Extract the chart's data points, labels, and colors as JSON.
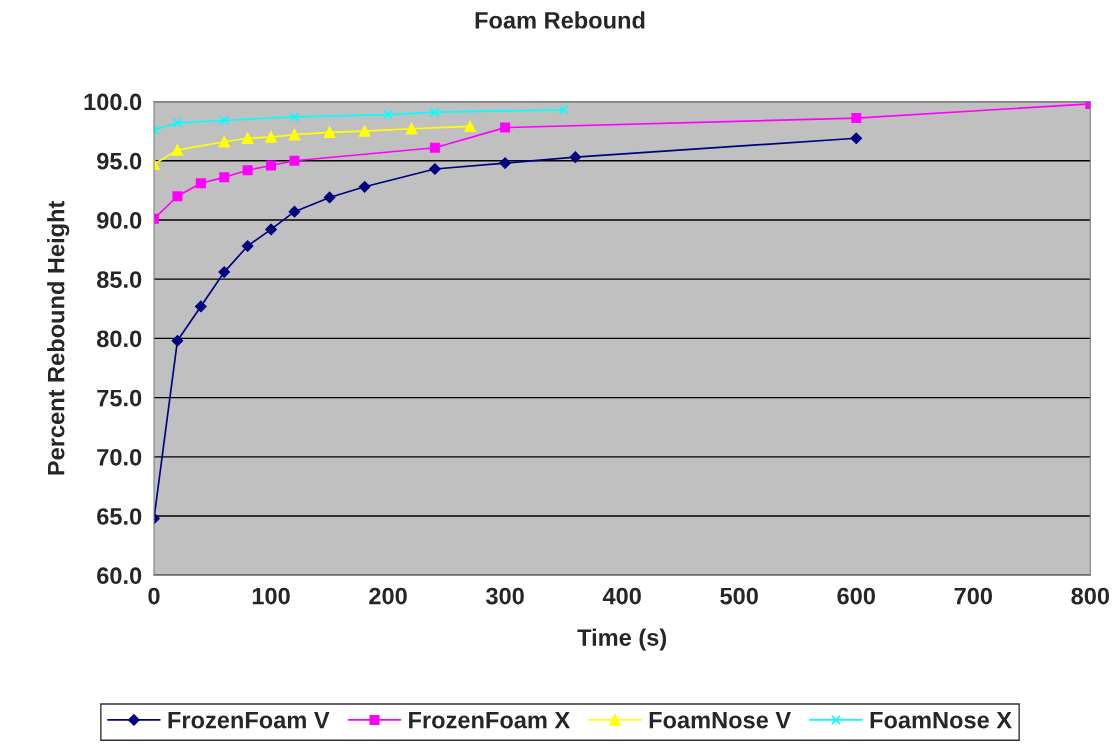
{
  "chart_data": {
    "type": "line",
    "title": "Foam Rebound",
    "xlabel": "Time (s)",
    "ylabel": "Percent Rebound Height",
    "xlim": [
      0,
      800
    ],
    "xticks": [
      0,
      100,
      200,
      300,
      400,
      500,
      600,
      700,
      800
    ],
    "ylim": [
      60,
      100
    ],
    "yticks": [
      {
        "value": 60,
        "label": "60.0"
      },
      {
        "value": 65,
        "label": "65.0"
      },
      {
        "value": 70,
        "label": "70.0"
      },
      {
        "value": 75,
        "label": "75.0"
      },
      {
        "value": 80,
        "label": "80.0"
      },
      {
        "value": 85,
        "label": "85.0"
      },
      {
        "value": 90,
        "label": "90.0"
      },
      {
        "value": 95,
        "label": "95.0"
      },
      {
        "value": 100,
        "label": "100.0"
      }
    ],
    "grid": "y",
    "legend": "bottom",
    "line_style": "solid",
    "series": [
      {
        "name": "FrozenFoam V",
        "color": "#000080",
        "marker": "diamond",
        "x": [
          0,
          20,
          40,
          60,
          80,
          100,
          120,
          150,
          180,
          240,
          300,
          360,
          600
        ],
        "values": [
          64.8,
          79.8,
          82.7,
          85.6,
          87.8,
          89.2,
          90.7,
          91.9,
          92.8,
          94.3,
          94.8,
          95.3,
          96.9
        ]
      },
      {
        "name": "FrozenFoam X",
        "color": "#ff00ff",
        "marker": "square",
        "x": [
          0,
          20,
          40,
          60,
          80,
          100,
          120,
          240,
          300,
          600,
          800
        ],
        "values": [
          90.1,
          92.0,
          93.1,
          93.6,
          94.2,
          94.6,
          95.0,
          96.1,
          97.8,
          98.6,
          99.8
        ]
      },
      {
        "name": "FoamNose V",
        "color": "#ffff00",
        "marker": "triangle",
        "x": [
          0,
          20,
          60,
          80,
          100,
          120,
          150,
          180,
          220,
          270
        ],
        "values": [
          94.7,
          95.9,
          96.6,
          96.9,
          97.0,
          97.2,
          97.4,
          97.5,
          97.7,
          97.9
        ]
      },
      {
        "name": "FoamNose X",
        "color": "#00ffff",
        "marker": "cross",
        "x": [
          0,
          20,
          60,
          120,
          200,
          240,
          350
        ],
        "values": [
          97.6,
          98.2,
          98.4,
          98.7,
          98.9,
          99.1,
          99.3
        ]
      }
    ]
  }
}
